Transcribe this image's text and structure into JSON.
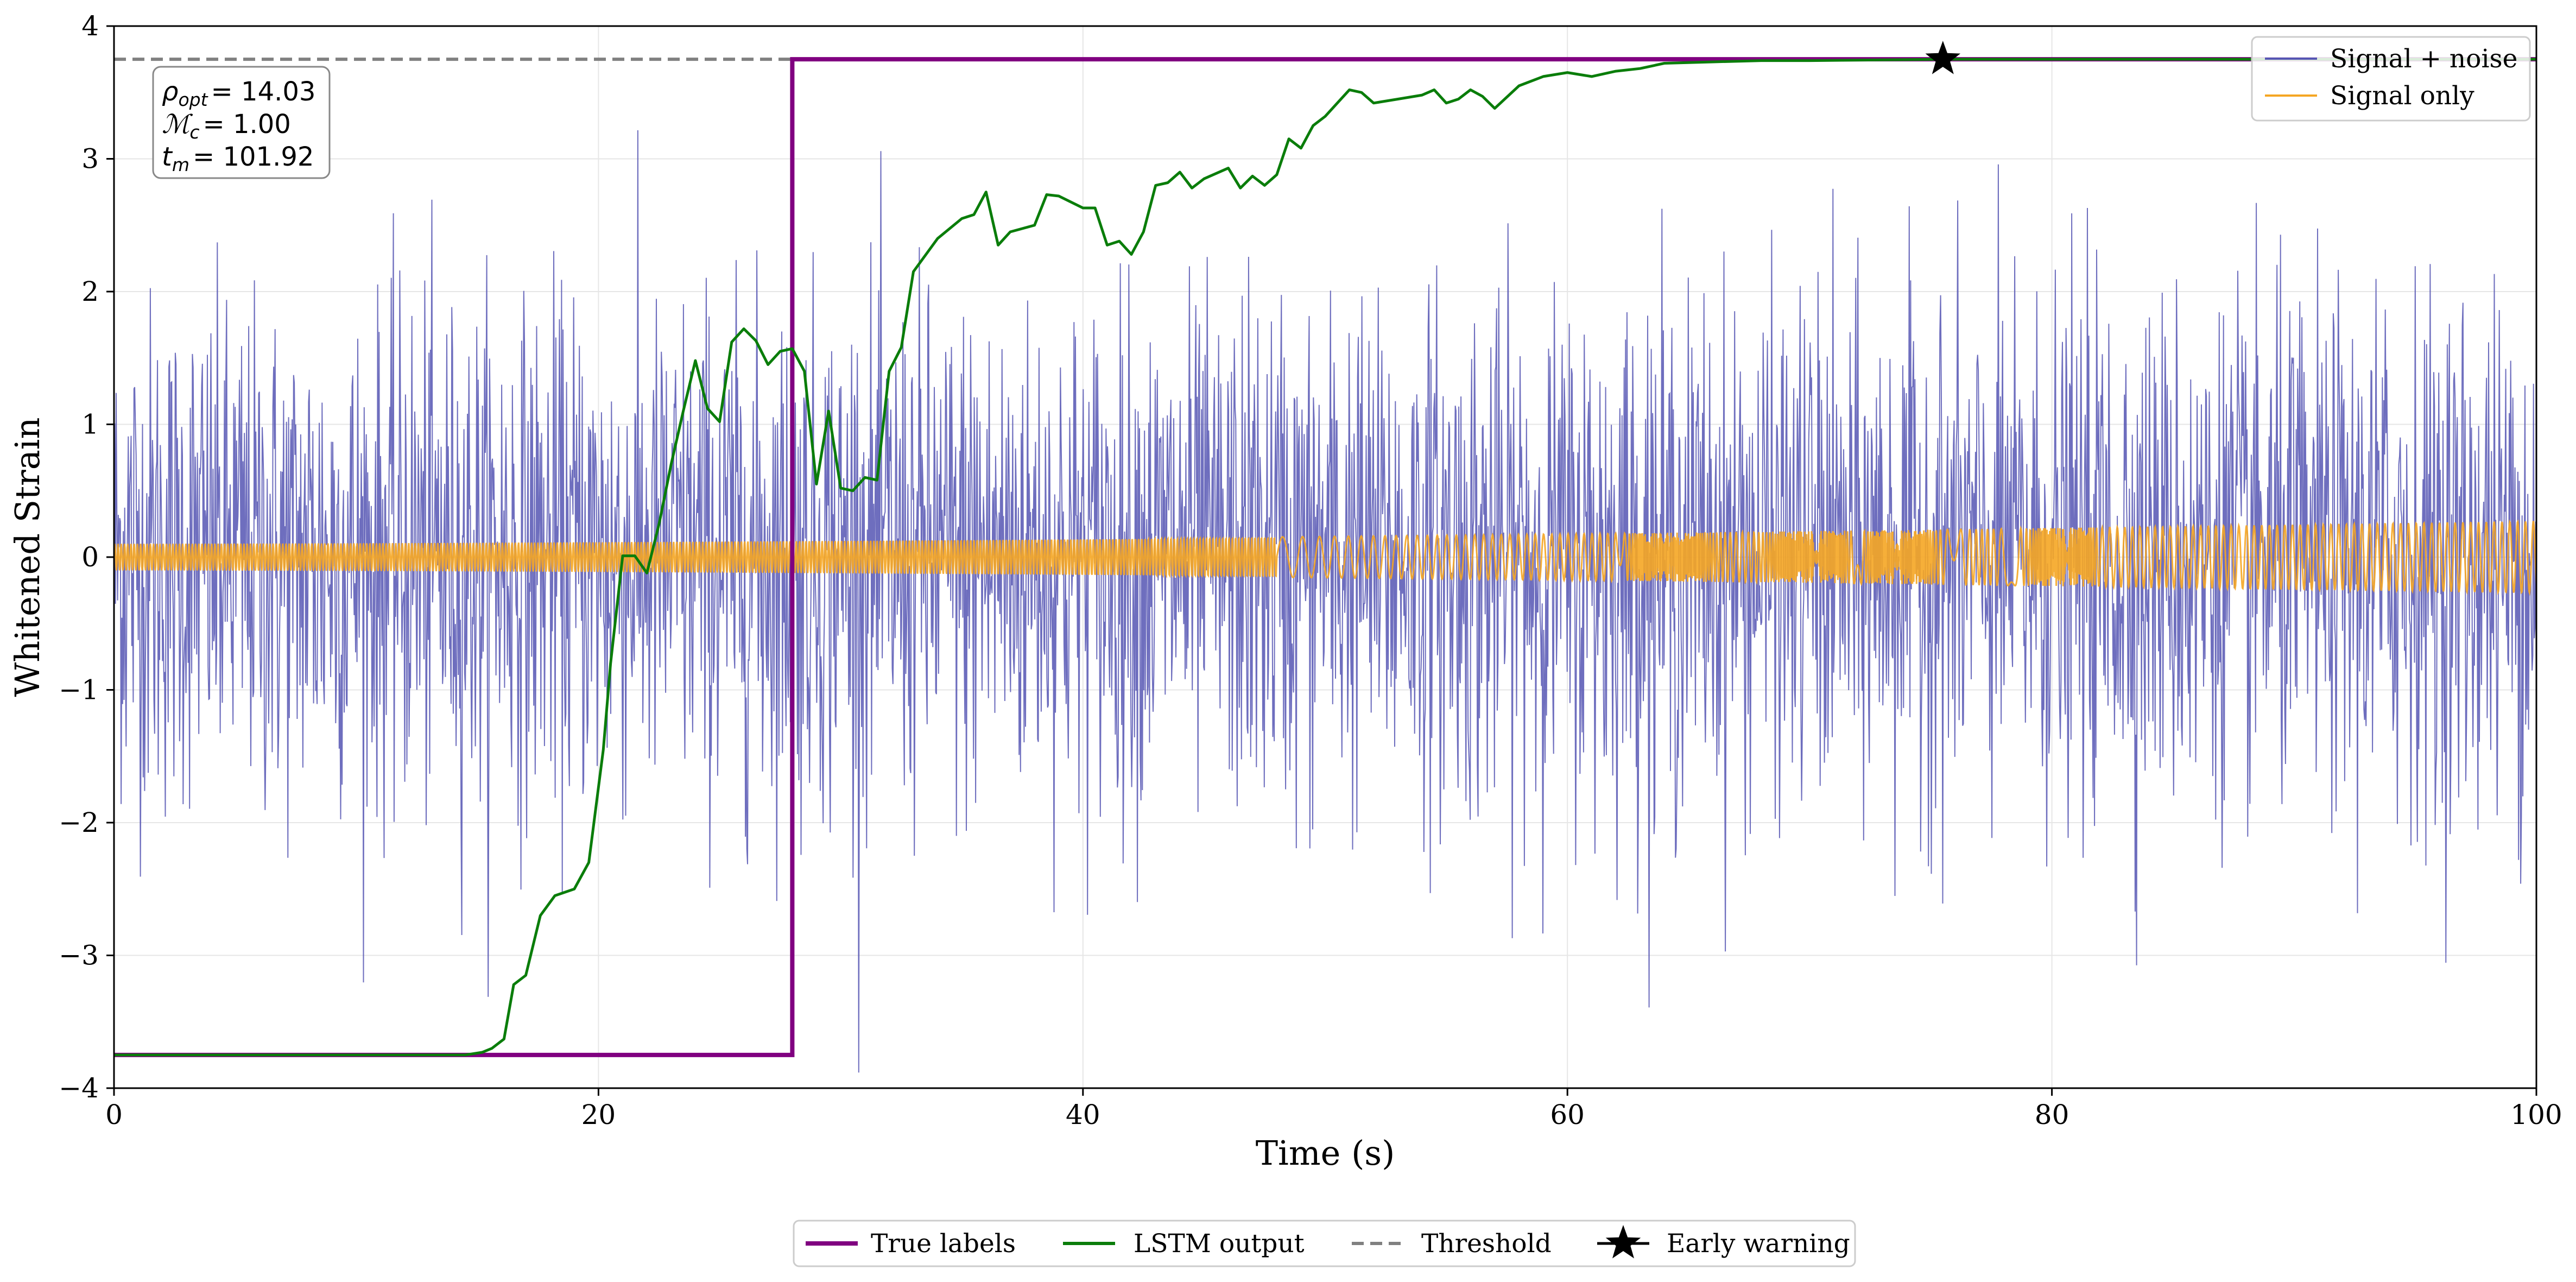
{
  "chart_data": {
    "type": "line",
    "title": "",
    "xlabel": "Time (s)",
    "ylabel": "Whitened Strain",
    "xlim": [
      0,
      100
    ],
    "ylim": [
      -4,
      4
    ],
    "xticks": [
      0,
      20,
      40,
      60,
      80,
      100
    ],
    "yticks": [
      -4,
      -3,
      -2,
      -1,
      0,
      1,
      2,
      3,
      4
    ],
    "xtick_labels": [
      "0",
      "20",
      "40",
      "60",
      "80",
      "100"
    ],
    "ytick_labels": [
      "−4",
      "−3",
      "−2",
      "−1",
      "0",
      "1",
      "2",
      "3",
      "4"
    ],
    "grid": true,
    "threshold": 3.75,
    "colors": {
      "signal_noise": "#5555b3",
      "signal_only": "#f5a623",
      "true_labels": "#800080",
      "lstm": "#0a7d0a",
      "threshold": "#808080",
      "marker": "#000000"
    },
    "series": [
      {
        "name": "Signal + noise",
        "style": "noise",
        "sigma": 0.95,
        "samples": 3400,
        "description_x_range": [
          0,
          100
        ]
      },
      {
        "name": "Signal only",
        "style": "chirp",
        "amplitude_start": 0.1,
        "amplitude_end": 0.27
      },
      {
        "name": "True labels",
        "x": [
          0,
          28,
          28,
          100
        ],
        "y": [
          -3.75,
          -3.75,
          3.75,
          3.75
        ]
      },
      {
        "name": "LSTM output",
        "x": [
          0,
          14.5,
          15.2,
          15.6,
          16.1,
          16.5,
          17.0,
          17.6,
          18.2,
          19.0,
          19.6,
          20.2,
          20.5,
          21.0,
          21.5,
          22.0,
          22.5,
          23.0,
          23.5,
          24.0,
          24.5,
          25.0,
          25.5,
          26.0,
          26.5,
          27.0,
          27.5,
          28.0,
          28.5,
          29.0,
          29.5,
          30.0,
          30.5,
          31.0,
          31.5,
          32.0,
          32.5,
          33.0,
          34.0,
          35.0,
          35.5,
          36.0,
          36.5,
          37.0,
          38.0,
          38.5,
          39.0,
          40.0,
          40.5,
          41.0,
          41.5,
          42.0,
          42.5,
          43.0,
          43.5,
          44.0,
          44.5,
          45.0,
          46.0,
          46.5,
          47.0,
          47.5,
          48.0,
          48.5,
          49.0,
          49.5,
          50.0,
          50.5,
          51.0,
          51.5,
          52.0,
          53.0,
          54.0,
          54.5,
          55.0,
          55.5,
          56.0,
          56.5,
          57.0,
          58.0,
          59.0,
          60.0,
          61.0,
          62.0,
          63.0,
          64.0,
          66.0,
          68.0,
          70.0,
          75.5,
          100
        ],
        "y": [
          -3.75,
          -3.75,
          -3.73,
          -3.7,
          -3.63,
          -3.22,
          -3.15,
          -2.7,
          -2.55,
          -2.5,
          -2.3,
          -1.45,
          -0.8,
          0.01,
          0.01,
          -0.12,
          0.25,
          0.7,
          1.1,
          1.48,
          1.12,
          1.02,
          1.62,
          1.72,
          1.63,
          1.45,
          1.55,
          1.57,
          1.4,
          0.55,
          1.1,
          0.52,
          0.5,
          0.6,
          0.58,
          1.4,
          1.58,
          2.15,
          2.4,
          2.55,
          2.58,
          2.75,
          2.35,
          2.45,
          2.5,
          2.73,
          2.72,
          2.63,
          2.63,
          2.35,
          2.38,
          2.28,
          2.45,
          2.8,
          2.82,
          2.9,
          2.78,
          2.85,
          2.93,
          2.78,
          2.87,
          2.8,
          2.88,
          3.15,
          3.08,
          3.25,
          3.32,
          3.42,
          3.52,
          3.5,
          3.42,
          3.45,
          3.48,
          3.52,
          3.42,
          3.45,
          3.52,
          3.47,
          3.38,
          3.55,
          3.62,
          3.65,
          3.62,
          3.66,
          3.68,
          3.72,
          3.73,
          3.74,
          3.74,
          3.75,
          3.75
        ]
      }
    ],
    "early_warning": {
      "x": 75.5,
      "y": 3.75
    },
    "annotation": {
      "rho_value": "= 14.03",
      "mc_value": "= 1.00",
      "tm_value": "= 101.92"
    },
    "legend_upper_right": [
      "Signal + noise",
      "Signal only"
    ],
    "legend_bottom": [
      "True labels",
      "LSTM output",
      "Threshold",
      "Early warning"
    ],
    "legend_placement": {
      "series": "top-right",
      "markers": "bottom-center"
    }
  }
}
